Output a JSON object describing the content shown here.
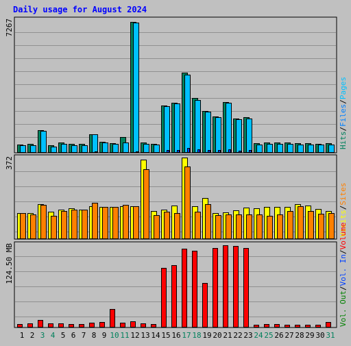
{
  "chart_data": {
    "type": "bar",
    "title": "Daily usage for August 2024",
    "categories": [
      "1",
      "2",
      "3",
      "4",
      "5",
      "6",
      "7",
      "8",
      "9",
      "10",
      "11",
      "12",
      "13",
      "14",
      "15",
      "16",
      "17",
      "18",
      "19",
      "20",
      "21",
      "22",
      "23",
      "24",
      "25",
      "26",
      "27",
      "28",
      "29",
      "30",
      "31"
    ],
    "weekend_days": [
      "3",
      "4",
      "10",
      "11",
      "17",
      "18",
      "24",
      "25",
      "31"
    ],
    "panels": [
      {
        "id": "hits",
        "max_label": "7267",
        "ymax": 7267,
        "series": [
          {
            "name": "Hits",
            "color": "#00805c",
            "values": [
              450,
              480,
              1250,
              400,
              560,
              480,
              480,
              1000,
              620,
              540,
              860,
              7200,
              560,
              500,
              2600,
              2750,
              4400,
              3000,
              2300,
              2000,
              2800,
              1900,
              1950,
              520,
              550,
              550,
              550,
              520,
              520,
              500,
              520
            ]
          },
          {
            "name": "Files",
            "color": "#00c0ff",
            "values": [
              400,
              430,
              1200,
              350,
              500,
              430,
              430,
              1000,
              560,
              500,
              560,
              7150,
              500,
              450,
              2550,
              2700,
              4300,
              2900,
              2250,
              1950,
              2750,
              1850,
              1900,
              470,
              500,
              500,
              500,
              470,
              470,
              450,
              470
            ]
          },
          {
            "name": "Pages",
            "color": "#0040ff",
            "values": [
              30,
              30,
              30,
              25,
              40,
              30,
              30,
              60,
              40,
              35,
              40,
              70,
              35,
              30,
              150,
              160,
              250,
              190,
              160,
              140,
              180,
              130,
              140,
              30,
              35,
              35,
              35,
              30,
              30,
              30,
              30
            ]
          }
        ]
      },
      {
        "id": "visits",
        "max_label": "372",
        "ymax": 372,
        "series": [
          {
            "name": "Visits",
            "color": "#ffff00",
            "values": [
              120,
              118,
              158,
              125,
              135,
              140,
              135,
              150,
              148,
              148,
              150,
              150,
              362,
              128,
              135,
              152,
              372,
              150,
              187,
              120,
              122,
              132,
              145,
              140,
              148,
              148,
              148,
              158,
              152,
              137,
              128
            ]
          },
          {
            "name": "Sites",
            "color": "#ff8000",
            "values": [
              120,
              112,
              155,
              107,
              128,
              133,
              135,
              165,
              148,
              148,
              155,
              150,
              320,
              108,
              125,
              120,
              330,
              125,
              160,
              110,
              112,
              112,
              112,
              112,
              105,
              112,
              128,
              150,
              127,
              115,
              120
            ]
          }
        ]
      },
      {
        "id": "volume",
        "max_label": "124.50 MB",
        "ymax": 124.5,
        "series": [
          {
            "name": "Volume",
            "color": "#ff0000",
            "values": [
              5,
              6,
              11,
              6,
              6,
              5,
              5,
              7,
              8,
              28,
              7,
              9,
              6,
              5,
              89,
              93,
              117,
              114,
              66,
              118,
              122,
              121,
              118,
              4,
              5,
              5,
              4,
              4,
              4,
              4,
              8
            ]
          }
        ]
      }
    ],
    "legend": [
      {
        "label": "Hits",
        "color": "#00805c"
      },
      {
        "label": "Files",
        "color": "#0080ff"
      },
      {
        "label": "Pages",
        "color": "#00c0ff"
      },
      {
        "label": "Visits",
        "color": "#ffff00"
      },
      {
        "label": "Sites",
        "color": "#ff8000"
      },
      {
        "label": "Vol. Out",
        "color": "#008000"
      },
      {
        "label": "Vol. In",
        "color": "#0040ff"
      },
      {
        "label": "Volume",
        "color": "#ff0000"
      }
    ],
    "separator": "/",
    "colors": {
      "background": "#c0c0c0",
      "title": "#0000ff",
      "weekday_label": "#000000",
      "weekend_label": "#00805c",
      "grid": "#909090"
    }
  }
}
